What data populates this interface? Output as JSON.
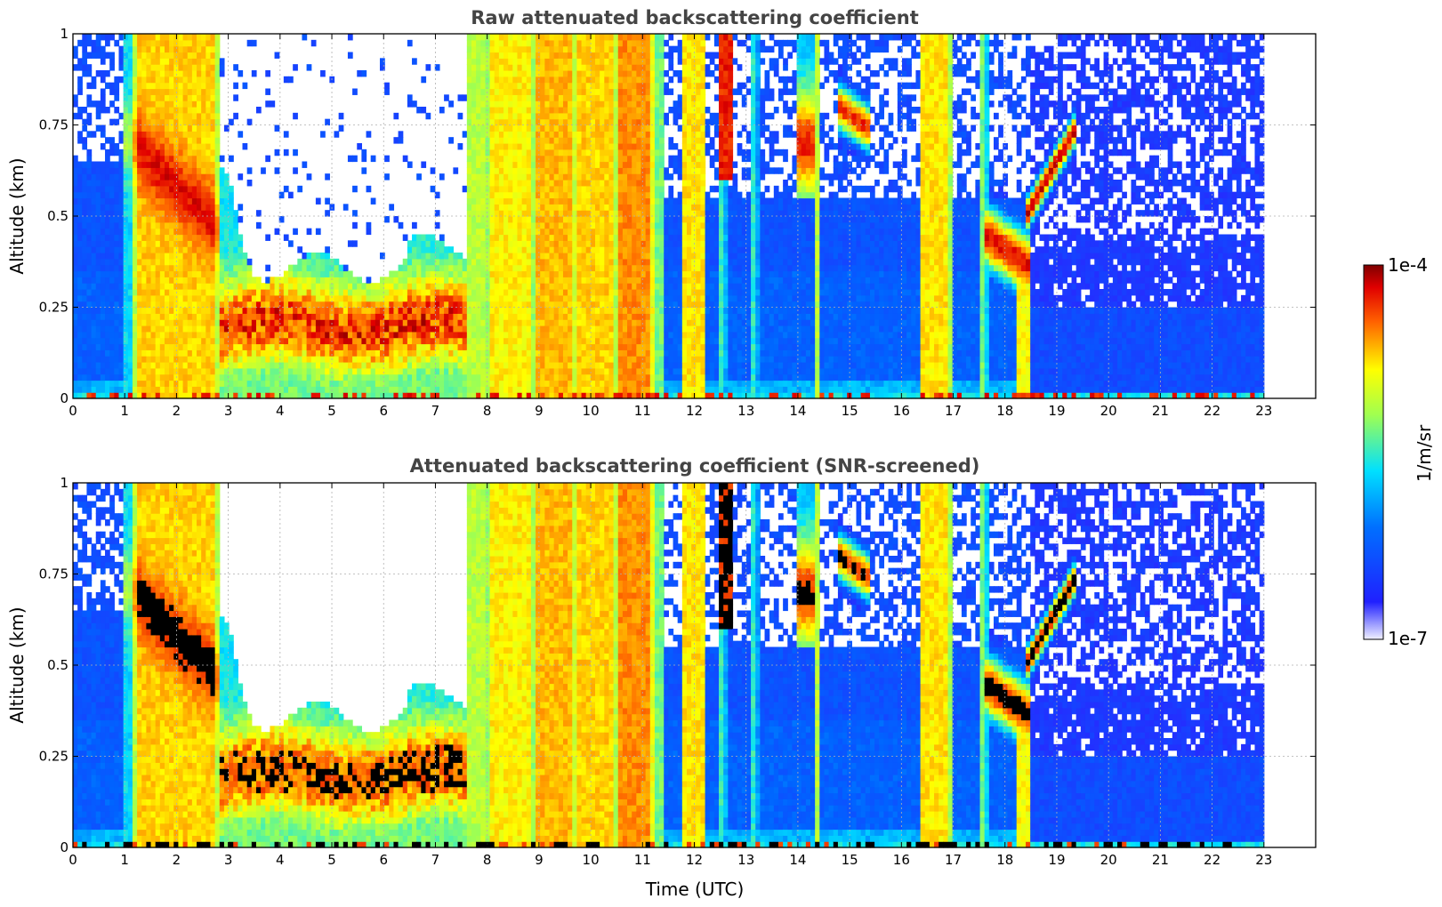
{
  "chart_data": [
    {
      "type": "heatmap",
      "title": "Raw attenuated backscattering coefficient",
      "xlabel": "",
      "ylabel": "Altitude (km)",
      "xlim": [
        0,
        24
      ],
      "ylim": [
        0,
        1
      ],
      "xticks": [
        "0",
        "1",
        "2",
        "3",
        "4",
        "5",
        "6",
        "7",
        "8",
        "9",
        "10",
        "11",
        "12",
        "13",
        "14",
        "15",
        "16",
        "17",
        "18",
        "19",
        "20",
        "21",
        "22",
        "23"
      ],
      "yticks": [
        "0",
        "0.25",
        "0.5",
        "0.75",
        "1"
      ],
      "grid": true,
      "data_end_time": 23,
      "screened": false
    },
    {
      "type": "heatmap",
      "title": "Attenuated backscattering coefficient (SNR-screened)",
      "xlabel": "Time (UTC)",
      "ylabel": "Altitude (km)",
      "xlim": [
        0,
        24
      ],
      "ylim": [
        0,
        1
      ],
      "xticks": [
        "0",
        "1",
        "2",
        "3",
        "4",
        "5",
        "6",
        "7",
        "8",
        "9",
        "10",
        "11",
        "12",
        "13",
        "14",
        "15",
        "16",
        "17",
        "18",
        "19",
        "20",
        "21",
        "22",
        "23"
      ],
      "yticks": [
        "0",
        "0.25",
        "0.5",
        "0.75",
        "1"
      ],
      "grid": true,
      "data_end_time": 23,
      "screened": true
    }
  ],
  "colorbar": {
    "max_label": "1e-4",
    "min_label": "1e-7",
    "label": "1/m/sr",
    "colormap": "jet",
    "colors": [
      "#f0f0ff",
      "#0000ff",
      "#00aaff",
      "#00ffff",
      "#ffff00",
      "#ff8800",
      "#ff0000",
      "#7f0000"
    ]
  }
}
